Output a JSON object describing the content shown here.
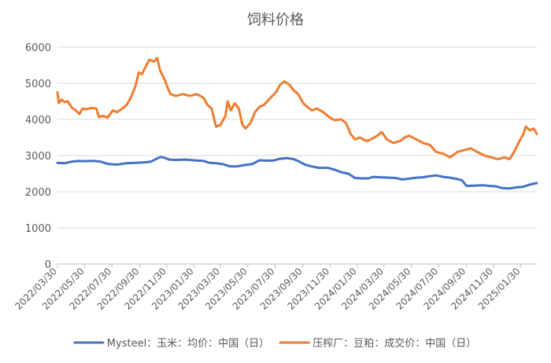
{
  "chart_data": {
    "type": "line",
    "title": "饲料价格",
    "xlabel": "",
    "ylabel": "",
    "ylim": [
      0,
      6000
    ],
    "yticks": [
      0,
      1000,
      2000,
      3000,
      4000,
      5000,
      6000
    ],
    "x_tick_labels": [
      "2022/03/30",
      "2022/05/30",
      "2022/07/30",
      "2022/09/30",
      "2022/11/30",
      "2023/01/30",
      "2023/03/30",
      "2023/05/30",
      "2023/07/30",
      "2023/09/30",
      "2023/11/30",
      "2024/01/30",
      "2024/03/30",
      "2024/05/30",
      "2024/07/30",
      "2024/09/30",
      "2024/11/30",
      "2025/01/30"
    ],
    "x_range": [
      "2022/03/30",
      "2025/03/07"
    ],
    "grid": "horizontal",
    "legend_position": "bottom",
    "series": [
      {
        "name": "Mysteel：玉米：均价：中国（日）",
        "color": "#4472C4",
        "points": [
          [
            "2022/03/30",
            2800
          ],
          [
            "2022/04/15",
            2790
          ],
          [
            "2022/05/01",
            2830
          ],
          [
            "2022/05/15",
            2850
          ],
          [
            "2022/06/01",
            2845
          ],
          [
            "2022/06/20",
            2855
          ],
          [
            "2022/07/05",
            2830
          ],
          [
            "2022/07/20",
            2770
          ],
          [
            "2022/08/10",
            2750
          ],
          [
            "2022/09/01",
            2790
          ],
          [
            "2022/09/20",
            2800
          ],
          [
            "2022/10/10",
            2810
          ],
          [
            "2022/10/25",
            2830
          ],
          [
            "2022/11/05",
            2900
          ],
          [
            "2022/11/15",
            2960
          ],
          [
            "2022/11/25",
            2940
          ],
          [
            "2022/12/05",
            2890
          ],
          [
            "2022/12/20",
            2880
          ],
          [
            "2023/01/10",
            2890
          ],
          [
            "2023/01/30",
            2870
          ],
          [
            "2023/02/20",
            2850
          ],
          [
            "2023/03/05",
            2800
          ],
          [
            "2023/03/20",
            2790
          ],
          [
            "2023/04/05",
            2760
          ],
          [
            "2023/04/20",
            2700
          ],
          [
            "2023/05/05",
            2700
          ],
          [
            "2023/05/20",
            2730
          ],
          [
            "2023/06/10",
            2770
          ],
          [
            "2023/06/25",
            2870
          ],
          [
            "2023/07/10",
            2860
          ],
          [
            "2023/07/25",
            2860
          ],
          [
            "2023/08/10",
            2910
          ],
          [
            "2023/08/25",
            2930
          ],
          [
            "2023/09/10",
            2900
          ],
          [
            "2023/09/20",
            2850
          ],
          [
            "2023/10/05",
            2750
          ],
          [
            "2023/10/20",
            2700
          ],
          [
            "2023/11/05",
            2660
          ],
          [
            "2023/11/25",
            2660
          ],
          [
            "2023/12/10",
            2610
          ],
          [
            "2023/12/25",
            2540
          ],
          [
            "2024/01/10",
            2500
          ],
          [
            "2024/01/25",
            2380
          ],
          [
            "2024/02/10",
            2370
          ],
          [
            "2024/02/25",
            2370
          ],
          [
            "2024/03/05",
            2410
          ],
          [
            "2024/03/20",
            2400
          ],
          [
            "2024/04/10",
            2390
          ],
          [
            "2024/04/25",
            2380
          ],
          [
            "2024/05/10",
            2340
          ],
          [
            "2024/05/25",
            2360
          ],
          [
            "2024/06/10",
            2390
          ],
          [
            "2024/06/25",
            2400
          ],
          [
            "2024/07/10",
            2430
          ],
          [
            "2024/07/25",
            2450
          ],
          [
            "2024/08/10",
            2410
          ],
          [
            "2024/08/25",
            2390
          ],
          [
            "2024/09/10",
            2350
          ],
          [
            "2024/09/20",
            2320
          ],
          [
            "2024/10/01",
            2160
          ],
          [
            "2024/10/20",
            2170
          ],
          [
            "2024/11/05",
            2180
          ],
          [
            "2024/11/20",
            2160
          ],
          [
            "2024/12/05",
            2150
          ],
          [
            "2024/12/20",
            2100
          ],
          [
            "2025/01/05",
            2090
          ],
          [
            "2025/01/20",
            2120
          ],
          [
            "2025/02/05",
            2140
          ],
          [
            "2025/02/20",
            2200
          ],
          [
            "2025/03/07",
            2240
          ]
        ]
      },
      {
        "name": "压榨厂：豆粕：成交价：中国（日）",
        "color": "#ED7D31",
        "points": [
          [
            "2022/03/30",
            4750
          ],
          [
            "2022/04/02",
            4450
          ],
          [
            "2022/04/08",
            4550
          ],
          [
            "2022/04/15",
            4480
          ],
          [
            "2022/04/22",
            4500
          ],
          [
            "2022/05/01",
            4330
          ],
          [
            "2022/05/10",
            4250
          ],
          [
            "2022/05/18",
            4150
          ],
          [
            "2022/05/25",
            4300
          ],
          [
            "2022/06/01",
            4280
          ],
          [
            "2022/06/15",
            4320
          ],
          [
            "2022/06/25",
            4300
          ],
          [
            "2022/07/01",
            4060
          ],
          [
            "2022/07/10",
            4100
          ],
          [
            "2022/07/20",
            4050
          ],
          [
            "2022/08/01",
            4250
          ],
          [
            "2022/08/10",
            4200
          ],
          [
            "2022/08/20",
            4280
          ],
          [
            "2022/09/01",
            4400
          ],
          [
            "2022/09/10",
            4600
          ],
          [
            "2022/09/20",
            4900
          ],
          [
            "2022/09/28",
            5300
          ],
          [
            "2022/10/05",
            5250
          ],
          [
            "2022/10/15",
            5500
          ],
          [
            "2022/10/22",
            5650
          ],
          [
            "2022/11/01",
            5600
          ],
          [
            "2022/11/08",
            5700
          ],
          [
            "2022/11/15",
            5350
          ],
          [
            "2022/11/25",
            5100
          ],
          [
            "2022/12/01",
            4900
          ],
          [
            "2022/12/08",
            4700
          ],
          [
            "2022/12/20",
            4650
          ],
          [
            "2023/01/05",
            4700
          ],
          [
            "2023/01/20",
            4650
          ],
          [
            "2023/02/05",
            4700
          ],
          [
            "2023/02/20",
            4600
          ],
          [
            "2023/03/01",
            4400
          ],
          [
            "2023/03/10",
            4300
          ],
          [
            "2023/03/20",
            3800
          ],
          [
            "2023/03/30",
            3850
          ],
          [
            "2023/04/10",
            4100
          ],
          [
            "2023/04/15",
            4500
          ],
          [
            "2023/04/22",
            4250
          ],
          [
            "2023/05/01",
            4450
          ],
          [
            "2023/05/10",
            4300
          ],
          [
            "2023/05/18",
            3850
          ],
          [
            "2023/05/25",
            3750
          ],
          [
            "2023/06/05",
            3900
          ],
          [
            "2023/06/15",
            4200
          ],
          [
            "2023/06/25",
            4350
          ],
          [
            "2023/07/05",
            4400
          ],
          [
            "2023/07/20",
            4600
          ],
          [
            "2023/08/01",
            4750
          ],
          [
            "2023/08/10",
            4950
          ],
          [
            "2023/08/20",
            5050
          ],
          [
            "2023/09/01",
            4950
          ],
          [
            "2023/09/10",
            4800
          ],
          [
            "2023/09/20",
            4700
          ],
          [
            "2023/10/01",
            4450
          ],
          [
            "2023/10/10",
            4350
          ],
          [
            "2023/10/20",
            4250
          ],
          [
            "2023/11/01",
            4300
          ],
          [
            "2023/11/15",
            4200
          ],
          [
            "2023/11/30",
            4050
          ],
          [
            "2023/12/10",
            3980
          ],
          [
            "2023/12/25",
            4000
          ],
          [
            "2024/01/05",
            3900
          ],
          [
            "2024/01/15",
            3600
          ],
          [
            "2024/01/25",
            3450
          ],
          [
            "2024/02/05",
            3500
          ],
          [
            "2024/02/20",
            3400
          ],
          [
            "2024/03/01",
            3450
          ],
          [
            "2024/03/15",
            3550
          ],
          [
            "2024/03/25",
            3650
          ],
          [
            "2024/04/05",
            3450
          ],
          [
            "2024/04/20",
            3350
          ],
          [
            "2024/05/05",
            3400
          ],
          [
            "2024/05/15",
            3500
          ],
          [
            "2024/05/25",
            3550
          ],
          [
            "2024/06/10",
            3450
          ],
          [
            "2024/06/25",
            3350
          ],
          [
            "2024/07/10",
            3300
          ],
          [
            "2024/07/25",
            3100
          ],
          [
            "2024/08/10",
            3050
          ],
          [
            "2024/08/25",
            2950
          ],
          [
            "2024/09/10",
            3100
          ],
          [
            "2024/09/25",
            3150
          ],
          [
            "2024/10/10",
            3200
          ],
          [
            "2024/10/25",
            3100
          ],
          [
            "2024/11/10",
            3000
          ],
          [
            "2024/11/25",
            2950
          ],
          [
            "2024/12/10",
            2900
          ],
          [
            "2024/12/25",
            2950
          ],
          [
            "2025/01/05",
            2900
          ],
          [
            "2025/01/15",
            3100
          ],
          [
            "2025/01/25",
            3350
          ],
          [
            "2025/02/05",
            3600
          ],
          [
            "2025/02/10",
            3800
          ],
          [
            "2025/02/20",
            3700
          ],
          [
            "2025/02/28",
            3750
          ],
          [
            "2025/03/07",
            3600
          ]
        ]
      }
    ]
  }
}
